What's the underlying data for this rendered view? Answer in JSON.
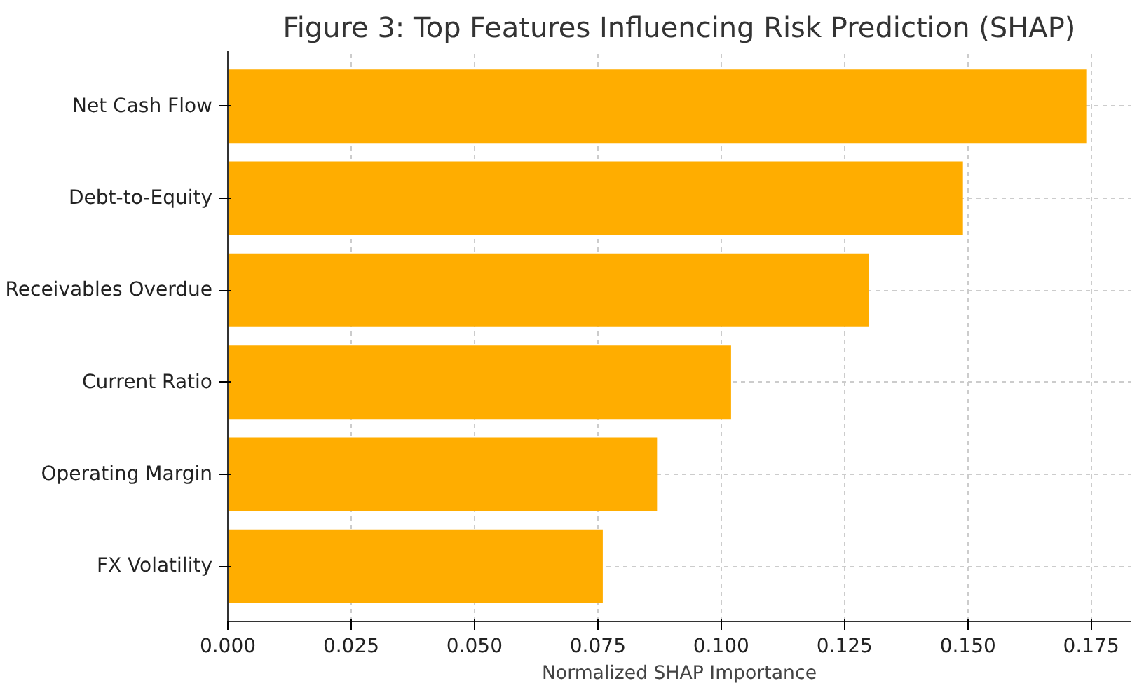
{
  "chart_data": {
    "type": "bar",
    "orientation": "horizontal",
    "title": "Figure 3: Top Features Influencing Risk Prediction (SHAP)",
    "xlabel": "Normalized SHAP Importance",
    "categories": [
      "Net Cash Flow",
      "Debt-to-Equity",
      "Receivables Overdue",
      "Current Ratio",
      "Operating Margin",
      "FX Volatility"
    ],
    "values": [
      0.174,
      0.149,
      0.13,
      0.102,
      0.087,
      0.076
    ],
    "color": "#ffad00",
    "xlim": [
      0,
      0.183
    ],
    "xticks": [
      {
        "value": 0,
        "label": "0.000"
      },
      {
        "value": 0.025,
        "label": "0.025"
      },
      {
        "value": 0.05,
        "label": "0.050"
      },
      {
        "value": 0.075,
        "label": "0.075"
      },
      {
        "value": 0.1,
        "label": "0.100"
      },
      {
        "value": 0.125,
        "label": "0.125"
      },
      {
        "value": 0.15,
        "label": "0.150"
      },
      {
        "value": 0.175,
        "label": "0.175"
      }
    ],
    "grid": true
  }
}
